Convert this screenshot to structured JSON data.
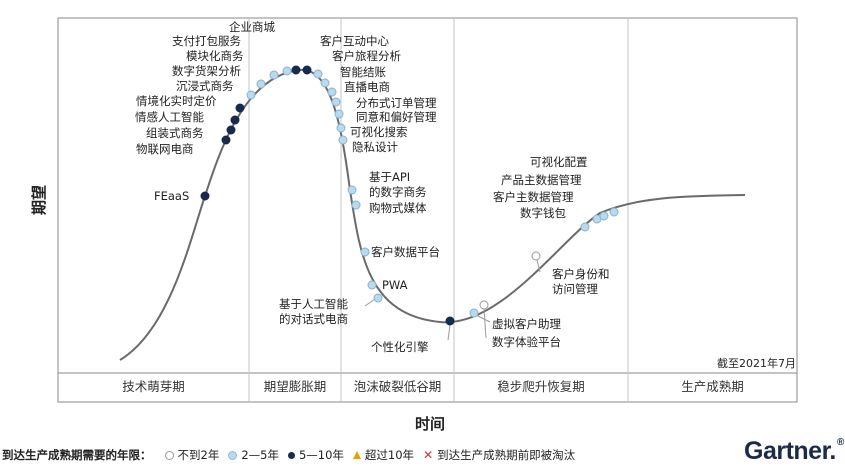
{
  "chart_data": {
    "type": "scatter",
    "xlabel": "时间",
    "ylabel": "期望",
    "note": "截至2021年7月",
    "phases": [
      "技术萌芽期",
      "期望膨胀期",
      "泡沫破裂低谷期",
      "稳步爬升恢复期",
      "生产成熟期"
    ],
    "points": [
      {
        "label": "FEaaS",
        "years": "5—10年"
      },
      {
        "label": "物联网电商",
        "years": "5—10年"
      },
      {
        "label": "组装式商务",
        "years": "5—10年"
      },
      {
        "label": "情感人工智能",
        "years": "5—10年"
      },
      {
        "label": "情境化实时定价",
        "years": "5—10年"
      },
      {
        "label": "沉浸式商务",
        "years": "2—5年"
      },
      {
        "label": "数字货架分析",
        "years": "2—5年"
      },
      {
        "label": "模块化商务",
        "years": "2—5年"
      },
      {
        "label": "支付打包服务",
        "years": "2—5年"
      },
      {
        "label": "企业商城",
        "years": "5—10年"
      },
      {
        "label": "客户互动中心",
        "years": "5—10年"
      },
      {
        "label": "客户旅程分析",
        "years": "2—5年"
      },
      {
        "label": "智能结账",
        "years": "2—5年"
      },
      {
        "label": "直播电商",
        "years": "2—5年"
      },
      {
        "label": "分布式订单管理",
        "years": "2—5年"
      },
      {
        "label": "同意和偏好管理",
        "years": "2—5年"
      },
      {
        "label": "可视化搜索",
        "years": "2—5年"
      },
      {
        "label": "隐私设计",
        "years": "2—5年"
      },
      {
        "label": "基于API的数字商务",
        "years": "2—5年"
      },
      {
        "label": "购物式媒体",
        "years": "2—5年"
      },
      {
        "label": "客户数据平台",
        "years": "2—5年"
      },
      {
        "label": "PWA",
        "years": "2—5年"
      },
      {
        "label": "基于人工智能的对话式电商",
        "years": "2—5年"
      },
      {
        "label": "个性化引擎",
        "years": "5—10年"
      },
      {
        "label": "虚拟客户助理",
        "years": "2—5年"
      },
      {
        "label": "数字体验平台",
        "years": "不到2年"
      },
      {
        "label": "客户身份和访问管理",
        "years": "不到2年"
      },
      {
        "label": "数字钱包",
        "years": "2—5年"
      },
      {
        "label": "客户主数据管理",
        "years": "2—5年"
      },
      {
        "label": "产品主数据管理",
        "years": "2—5年"
      },
      {
        "label": "可视化配置",
        "years": "2—5年"
      }
    ]
  },
  "legend": {
    "title": "到达生产成熟期需要的年限：",
    "items": [
      {
        "label": "不到2年",
        "symbol": "dot",
        "color": "#ffffff"
      },
      {
        "label": "2—5年",
        "symbol": "dot",
        "color": "#b9d9ec"
      },
      {
        "label": "5—10年",
        "symbol": "dot",
        "color": "#172a4f"
      },
      {
        "label": "超过10年",
        "symbol": "triangle",
        "color": "#e8a000"
      },
      {
        "label": "到达生产成熟期前即被淘汰",
        "symbol": "x",
        "color": "#d43030"
      }
    ]
  },
  "brand": "Gartner."
}
